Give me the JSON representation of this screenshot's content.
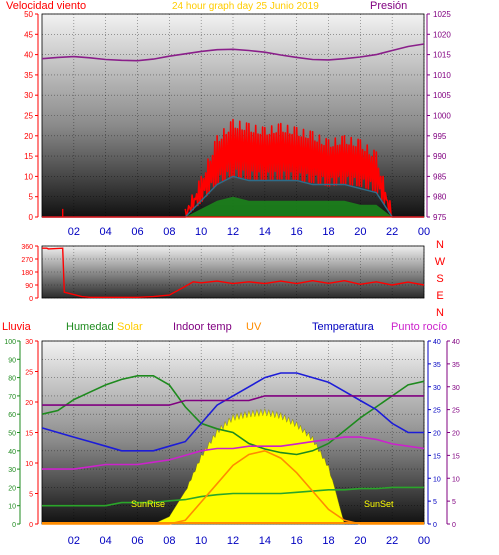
{
  "colors": {
    "wind_speed": "#ff0000",
    "wind_gust_fill": "#ff0000",
    "wind_avg": "#2e6d8a",
    "wind_green": "#1b8a1b",
    "pressure": "#8a1f8a",
    "direction": "#ff0000",
    "humidity": "#1e8a1e",
    "solar": "#ffff00",
    "solar_edge": "#808000",
    "uv": "#ff8c00",
    "indoor_temp": "#800080",
    "temperature": "#1c1cd8",
    "dew_point": "#cc22cc",
    "rain_axis": "#ff0000",
    "solar_axis_text": "#3aa03a",
    "temp_axis": "#0000c0",
    "title_yellow": "#ffcc00"
  },
  "chart_data": [
    {
      "type": "line",
      "id": "wind-pressure",
      "title": "24 hour graph day   25 Junio 2019",
      "left_label": "Velocidad viento",
      "right_label": "Presión",
      "x_ticks": [
        "02",
        "04",
        "06",
        "08",
        "10",
        "12",
        "14",
        "16",
        "18",
        "20",
        "22",
        "00"
      ],
      "y_left_ticks": [
        0,
        5,
        10,
        15,
        20,
        25,
        30,
        35,
        40,
        45,
        50
      ],
      "y_right_ticks": [
        975,
        980,
        985,
        990,
        995,
        1000,
        1005,
        1010,
        1015,
        1020,
        1025
      ],
      "ylim_left": [
        0,
        50
      ],
      "ylim_right": [
        975,
        1025
      ],
      "x_hours": [
        0,
        1,
        2,
        3,
        4,
        5,
        6,
        7,
        8,
        9,
        10,
        11,
        12,
        13,
        14,
        15,
        16,
        17,
        18,
        19,
        20,
        21,
        22,
        23,
        24
      ],
      "series": [
        {
          "name": "Presión",
          "axis": "right",
          "values": [
            1014,
            1014.3,
            1014.5,
            1014.2,
            1013.8,
            1013.6,
            1013.5,
            1013.9,
            1014.6,
            1015.2,
            1015.8,
            1016.2,
            1016.3,
            1016.0,
            1015.6,
            1014.9,
            1014.3,
            1013.8,
            1013.7,
            1014.0,
            1014.4,
            1015.0,
            1016.0,
            1017.0,
            1017.6
          ]
        },
        {
          "name": "wind_gust",
          "axis": "left",
          "values": [
            0,
            0,
            0,
            0,
            0,
            0,
            0,
            0,
            0,
            0,
            8,
            18,
            22,
            21,
            20,
            21,
            20,
            19,
            17,
            18,
            17,
            14,
            0,
            0,
            0
          ]
        },
        {
          "name": "wind_avg",
          "axis": "left",
          "values": [
            0,
            0,
            0,
            0,
            0,
            0,
            0,
            0,
            0,
            0,
            4,
            8,
            10,
            9,
            9,
            9,
            9,
            8,
            8,
            8,
            7,
            6,
            0,
            0,
            0
          ]
        },
        {
          "name": "wind_low",
          "axis": "left",
          "values": [
            0,
            0,
            0,
            0,
            0,
            0,
            0,
            0,
            0,
            0,
            2,
            4,
            5,
            4,
            4,
            4,
            4,
            4,
            4,
            4,
            3,
            3,
            0,
            0,
            0
          ]
        }
      ],
      "spike": {
        "x": 1.3,
        "y": 2
      }
    },
    {
      "type": "line",
      "id": "wind-direction",
      "y_ticks": [
        0,
        90,
        180,
        270,
        360
      ],
      "ylim": [
        0,
        360
      ],
      "direction_labels": [
        "N",
        "W",
        "S",
        "E",
        "N"
      ],
      "x_hours": [
        0,
        0.3,
        0.4,
        1.3,
        1.4,
        2.5,
        3,
        4,
        5,
        6,
        7,
        8,
        9,
        9.5,
        10,
        11,
        12,
        13,
        14,
        15,
        16,
        17,
        18,
        19,
        20,
        21,
        22,
        23,
        24
      ],
      "values": [
        345,
        345,
        340,
        345,
        40,
        10,
        5,
        5,
        5,
        5,
        10,
        20,
        80,
        100,
        115,
        105,
        110,
        100,
        110,
        105,
        110,
        108,
        112,
        108,
        105,
        100,
        100,
        98,
        100
      ]
    },
    {
      "type": "line",
      "id": "humidity-solar-temp",
      "top_labels": {
        "lluvia": "Lluvia",
        "humedad": "Humedad",
        "solar": "Solar",
        "indoor": "Indoor temp",
        "uv": "UV",
        "temperatura": "Temperatura",
        "punto": "Punto rocío"
      },
      "y_humidity_ticks": [
        0,
        10,
        20,
        30,
        40,
        50,
        60,
        70,
        80,
        90,
        100
      ],
      "y_rain_ticks": [
        0,
        5,
        10,
        15,
        20,
        25,
        30
      ],
      "y_temp_ticks": [
        0,
        5,
        10,
        15,
        20,
        25,
        30,
        35,
        40
      ],
      "ylim_humidity": [
        0,
        100
      ],
      "ylim_temp": [
        0,
        40
      ],
      "x_ticks": [
        "02",
        "04",
        "06",
        "08",
        "10",
        "12",
        "14",
        "16",
        "18",
        "20",
        "22",
        "00"
      ],
      "x_hours": [
        0,
        1,
        2,
        3,
        4,
        5,
        6,
        7,
        8,
        9,
        10,
        11,
        12,
        13,
        14,
        15,
        16,
        17,
        18,
        19,
        20,
        21,
        22,
        23,
        24
      ],
      "series": [
        {
          "name": "Humedad",
          "axis": "humidity",
          "values": [
            60,
            62,
            68,
            72,
            76,
            79,
            81,
            81,
            76,
            64,
            55,
            52,
            50,
            44,
            41,
            39,
            38,
            40,
            44,
            51,
            58,
            64,
            70,
            76,
            78
          ]
        },
        {
          "name": "Temperatura",
          "axis": "temp",
          "values": [
            21,
            20,
            19,
            18,
            17,
            16,
            16,
            16,
            17,
            18,
            22,
            26,
            28,
            30,
            32,
            33,
            33,
            32,
            31,
            29,
            27,
            25,
            22,
            20,
            20
          ]
        },
        {
          "name": "Indoor temp",
          "axis": "temp",
          "values": [
            26,
            26,
            26,
            26,
            26,
            26,
            26,
            26,
            26,
            27,
            27,
            27,
            27,
            27,
            28,
            28,
            28,
            28,
            28,
            28,
            28,
            28,
            28,
            28,
            28
          ]
        },
        {
          "name": "Punto rocío",
          "axis": "temp",
          "values": [
            12,
            12,
            12,
            12.5,
            13,
            13,
            13,
            13.5,
            14,
            15,
            16,
            16.5,
            16.5,
            17,
            17,
            17,
            17.5,
            18,
            18.5,
            19,
            19,
            18.5,
            17.5,
            17,
            16.5
          ]
        },
        {
          "name": "Solar",
          "axis": "rain",
          "values": [
            3,
            3,
            3,
            3,
            3,
            3.5,
            3.5,
            3.5,
            3.8,
            4,
            4.5,
            4.8,
            5,
            5,
            5,
            5,
            5.2,
            5.4,
            5.6,
            5.6,
            5.8,
            5.8,
            6,
            6,
            6
          ]
        },
        {
          "name": "UV",
          "axis": "humidity",
          "values": [
            0,
            0,
            0,
            0,
            0,
            0,
            0,
            0,
            0,
            2,
            12,
            22,
            32,
            38,
            40,
            36,
            28,
            18,
            8,
            2,
            0,
            0,
            0,
            0,
            0
          ]
        }
      ],
      "solar_area": {
        "axis": "humidity",
        "x_hours": [
          7,
          8,
          9,
          10,
          11,
          12,
          13,
          14,
          15,
          16,
          17,
          18,
          19
        ],
        "values": [
          0,
          4,
          18,
          38,
          52,
          60,
          62,
          63,
          61,
          56,
          48,
          32,
          0
        ]
      },
      "sunrise_label": "SunRise",
      "sunset_label": "SunSet"
    }
  ]
}
